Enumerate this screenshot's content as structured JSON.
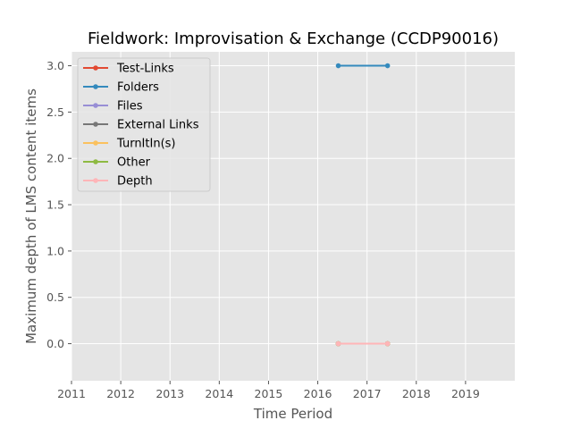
{
  "chart_data": {
    "type": "line",
    "title": "Fieldwork: Improvisation & Exchange (CCDP90016)",
    "xlabel": "Time Period",
    "ylabel": "Maximum depth of LMS content items",
    "x_axis": "dates",
    "xlim": [
      "2011-01-01",
      "2020-01-01"
    ],
    "ylim": [
      -0.4,
      3.15
    ],
    "xticks": [
      "2011",
      "2012",
      "2013",
      "2014",
      "2015",
      "2016",
      "2017",
      "2018",
      "2019"
    ],
    "yticks": [
      "0.0",
      "0.5",
      "1.0",
      "1.5",
      "2.0",
      "2.5",
      "3.0"
    ],
    "grid": true,
    "legend_position": "top-left",
    "background": "#e5e5e5",
    "x": [
      "2016-06",
      "2017-06"
    ],
    "series": [
      {
        "name": "Test-Links",
        "color": "#e24a33",
        "values": [
          0,
          0
        ]
      },
      {
        "name": "Folders",
        "color": "#348abd",
        "values": [
          3,
          3
        ]
      },
      {
        "name": "Files",
        "color": "#988ed5",
        "values": [
          0,
          0
        ]
      },
      {
        "name": "External Links",
        "color": "#777777",
        "values": [
          0,
          0
        ]
      },
      {
        "name": "TurnItIn(s)",
        "color": "#fbc15e",
        "values": [
          0,
          0
        ]
      },
      {
        "name": "Other",
        "color": "#8eba42",
        "values": [
          0,
          0
        ]
      },
      {
        "name": "Depth",
        "color": "#ffb5b8",
        "values": [
          0,
          0
        ]
      }
    ]
  }
}
